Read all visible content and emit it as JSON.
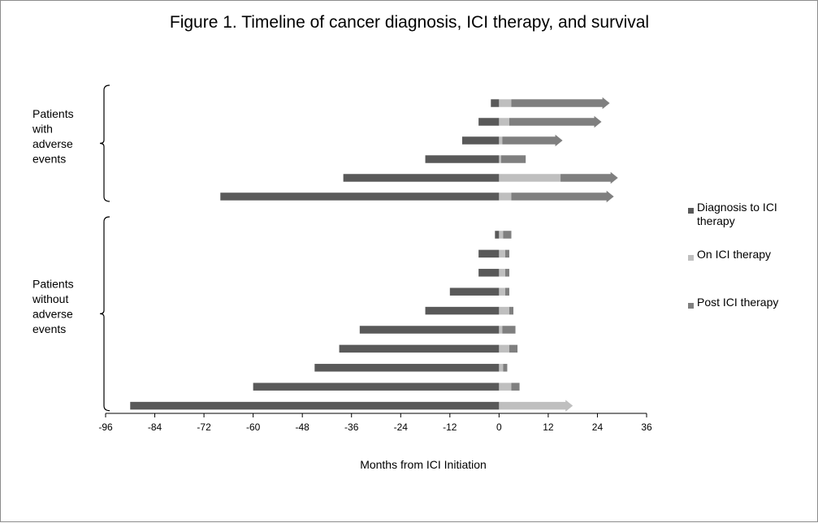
{
  "chart_data": {
    "type": "bar",
    "orientation": "horizontal-stacked",
    "title": "Figure 1. Timeline of cancer diagnosis, ICI therapy, and survival",
    "xlabel": "Months from ICI Initiation",
    "ylabel": "",
    "xlim": [
      -96,
      36
    ],
    "xticks": [
      -96,
      -84,
      -72,
      -60,
      -48,
      -36,
      -24,
      -12,
      0,
      12,
      24,
      36
    ],
    "legend_position": "right",
    "series": [
      {
        "name": "Diagnosis to ICI therapy",
        "color": "#595959"
      },
      {
        "name": "On ICI therapy",
        "color": "#bfbfbf"
      },
      {
        "name": "Post ICI therapy",
        "color": "#7f7f7f"
      }
    ],
    "groups": [
      {
        "label_lines": [
          "Patients",
          "with",
          "adverse",
          "events"
        ],
        "patients": [
          {
            "diagnosis_start": -2,
            "on_therapy_end": 3,
            "post_end": 27,
            "ongoing": true
          },
          {
            "diagnosis_start": -5,
            "on_therapy_end": 2.5,
            "post_end": 25,
            "ongoing": true
          },
          {
            "diagnosis_start": -9,
            "on_therapy_end": 0.8,
            "post_end": 15.5,
            "ongoing": true
          },
          {
            "diagnosis_start": -18,
            "on_therapy_end": 0.5,
            "post_end": 6.5,
            "ongoing": false
          },
          {
            "diagnosis_start": -38,
            "on_therapy_end": 15,
            "post_end": 29,
            "ongoing": true
          },
          {
            "diagnosis_start": -68,
            "on_therapy_end": 3,
            "post_end": 28,
            "ongoing": true
          }
        ]
      },
      {
        "label_lines": [
          "Patients",
          "without",
          "adverse",
          "events"
        ],
        "patients": [
          {
            "diagnosis_start": -1,
            "on_therapy_end": 1,
            "post_end": 3,
            "ongoing": false
          },
          {
            "diagnosis_start": -5,
            "on_therapy_end": 1.5,
            "post_end": 2.5,
            "ongoing": false
          },
          {
            "diagnosis_start": -5,
            "on_therapy_end": 1.5,
            "post_end": 2.5,
            "ongoing": false
          },
          {
            "diagnosis_start": -12,
            "on_therapy_end": 1.5,
            "post_end": 2.5,
            "ongoing": false
          },
          {
            "diagnosis_start": -18,
            "on_therapy_end": 2.5,
            "post_end": 3.5,
            "ongoing": false
          },
          {
            "diagnosis_start": -34,
            "on_therapy_end": 0.8,
            "post_end": 4,
            "ongoing": false
          },
          {
            "diagnosis_start": -39,
            "on_therapy_end": 2.5,
            "post_end": 4.5,
            "ongoing": false
          },
          {
            "diagnosis_start": -45,
            "on_therapy_end": 1,
            "post_end": 2,
            "ongoing": false
          },
          {
            "diagnosis_start": -60,
            "on_therapy_end": 3,
            "post_end": 5,
            "ongoing": false
          },
          {
            "diagnosis_start": -90,
            "on_therapy_end": 18,
            "post_end": 18,
            "ongoing": true
          }
        ]
      }
    ]
  }
}
